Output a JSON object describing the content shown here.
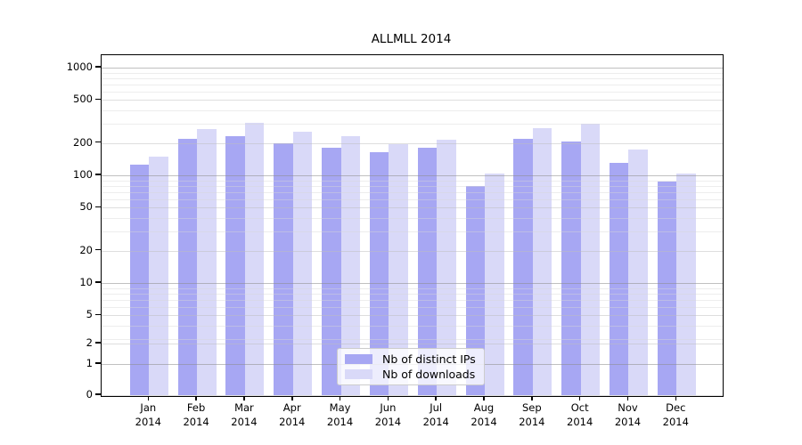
{
  "title": "ALLMLL 2014",
  "chart_data": {
    "type": "bar",
    "title": "ALLMLL 2014",
    "categories": [
      "Jan",
      "Feb",
      "Mar",
      "Apr",
      "May",
      "Jun",
      "Jul",
      "Aug",
      "Sep",
      "Oct",
      "Nov",
      "Dec"
    ],
    "year": "2014",
    "series": [
      {
        "name": "Nb of distinct IPs",
        "color": "#a7a7f3",
        "values": [
          125,
          220,
          230,
          200,
          182,
          165,
          180,
          80,
          220,
          205,
          130,
          87
        ]
      },
      {
        "name": "Nb of downloads",
        "color": "#d9d9f8",
        "values": [
          148,
          270,
          305,
          255,
          232,
          195,
          215,
          103,
          275,
          300,
          175,
          103
        ]
      }
    ],
    "yscale": "symlog",
    "ylim": [
      0,
      1300
    ],
    "y_ticks": [
      1000,
      500,
      200,
      100,
      50,
      20,
      10,
      5,
      2,
      1,
      0
    ],
    "y_minor_ticks": [
      3,
      4,
      6,
      7,
      8,
      9,
      30,
      40,
      60,
      70,
      80,
      90,
      300,
      400,
      600,
      700,
      800,
      900
    ],
    "grid": true,
    "legend_position": "lower center"
  }
}
